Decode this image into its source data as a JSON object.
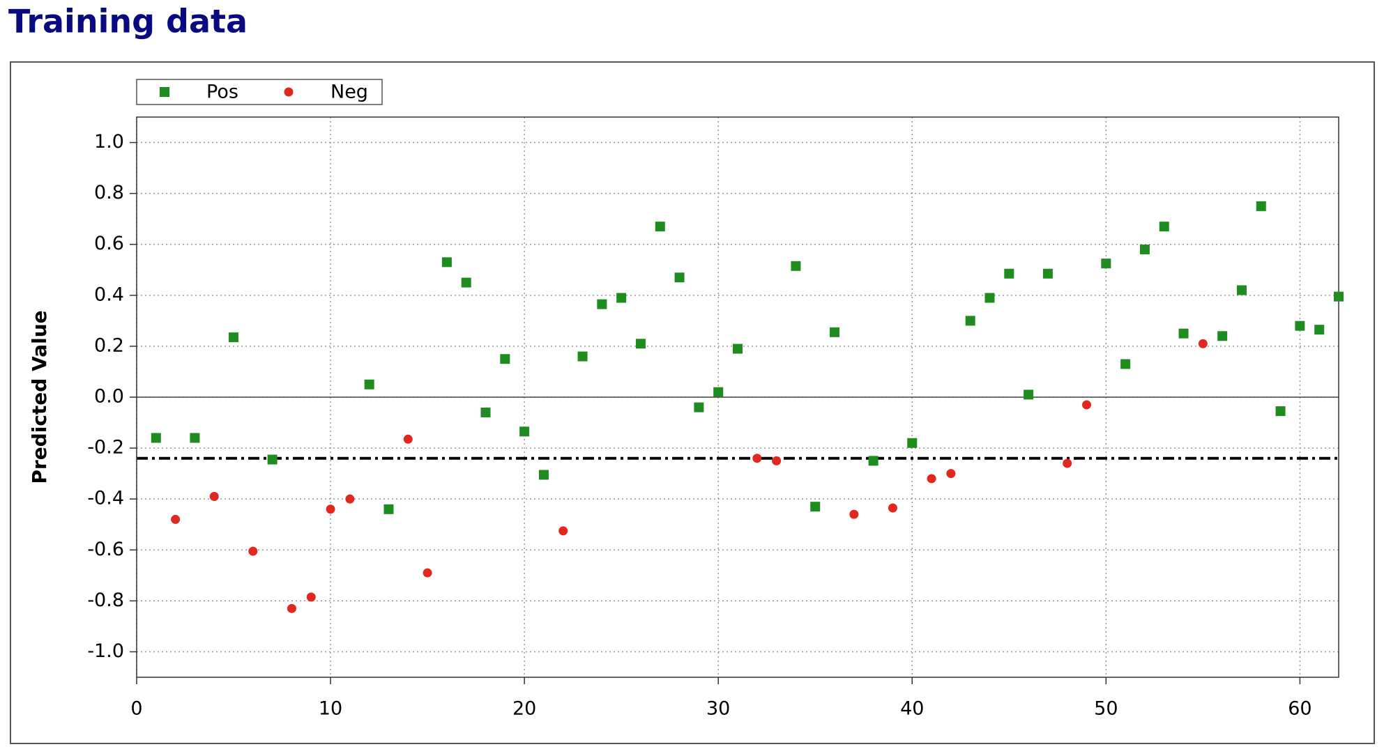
{
  "chart_data": {
    "type": "scatter",
    "title": "Training data",
    "ylabel": "Predicted Value",
    "xlim": [
      0,
      62
    ],
    "xticks": [
      0,
      10,
      20,
      30,
      40,
      50,
      60
    ],
    "ylim": [
      -1.1,
      1.1
    ],
    "yticks": [
      {
        "value": -1.0,
        "label": "-1.0"
      },
      -0.8,
      -0.6,
      -0.4,
      -0.2,
      {
        "value": 0,
        "label": "0.0"
      },
      0.2,
      0.4,
      0.6,
      0.8,
      {
        "value": 1.0,
        "label": "1.0"
      }
    ],
    "grid": true,
    "legend": "top-left",
    "threshold": -0.24,
    "series": [
      {
        "name": "Pos",
        "color": "#1e8c1e",
        "marker": "square",
        "x": [
          1,
          3,
          5,
          7,
          12,
          13,
          16,
          17,
          18,
          19,
          20,
          21,
          23,
          24,
          25,
          26,
          27,
          28,
          29,
          30,
          31,
          34,
          35,
          36,
          38,
          40,
          43,
          44,
          45,
          46,
          47,
          50,
          51,
          52,
          53,
          54,
          56,
          57,
          58,
          59,
          60,
          61,
          62
        ],
        "values": [
          -0.16,
          -0.16,
          0.235,
          -0.245,
          0.05,
          -0.44,
          0.53,
          0.45,
          -0.06,
          0.15,
          -0.135,
          -0.305,
          0.16,
          0.365,
          0.39,
          0.21,
          0.67,
          0.47,
          -0.04,
          0.02,
          0.19,
          0.515,
          -0.43,
          0.255,
          -0.25,
          -0.18,
          0.3,
          0.39,
          0.485,
          0.01,
          0.485,
          0.525,
          0.13,
          0.58,
          0.67,
          0.25,
          0.24,
          0.42,
          0.75,
          -0.055,
          0.28,
          0.265,
          0.395
        ]
      },
      {
        "name": "Neg",
        "color": "#e0281e",
        "marker": "circle",
        "x": [
          2,
          4,
          6,
          8,
          9,
          10,
          11,
          14,
          15,
          22,
          32,
          33,
          37,
          39,
          41,
          42,
          48,
          49,
          55
        ],
        "values": [
          -0.48,
          -0.39,
          -0.605,
          -0.83,
          -0.785,
          -0.44,
          -0.4,
          -0.165,
          -0.69,
          -0.525,
          -0.24,
          -0.25,
          -0.46,
          -0.435,
          -0.32,
          -0.3,
          -0.26,
          -0.03,
          0.21
        ]
      }
    ]
  }
}
